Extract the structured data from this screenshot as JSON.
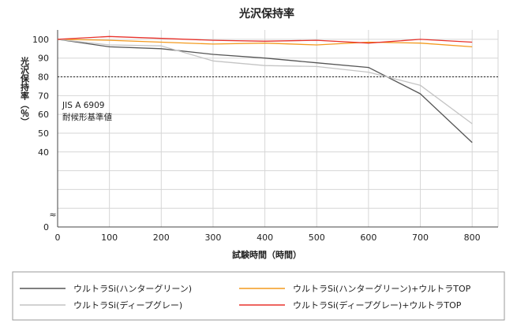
{
  "chart_data": {
    "type": "line",
    "title": "光沢保持率",
    "xlabel": "試験時間（時間）",
    "ylabel": "光沢保持率（％）",
    "x": [
      0,
      100,
      200,
      300,
      400,
      500,
      600,
      700,
      800
    ],
    "xlim": [
      0,
      850
    ],
    "ylim": [
      0,
      105
    ],
    "yticks": [
      0,
      40,
      50,
      60,
      70,
      80,
      90,
      100
    ],
    "axis_break": "≈",
    "grid": true,
    "reference_line": {
      "y": 80,
      "label_line1": "JIS A 6909",
      "label_line2": "耐候形基準値"
    },
    "legend_position": "bottom",
    "series": [
      {
        "name": "ウルトラSi(ハンターグリーン)",
        "color": "#555555",
        "values": [
          100,
          96,
          95,
          92,
          90,
          87.5,
          85,
          71,
          45
        ]
      },
      {
        "name": "ウルトラSi(ハンターグリーン)+ウルトラTOP",
        "color": "#f39a1e",
        "values": [
          100,
          99.5,
          98.5,
          97.5,
          98,
          97,
          98.5,
          98,
          96
        ]
      },
      {
        "name": "ウルトラSi(ディープグレー)",
        "color": "#c4c4c4",
        "values": [
          100,
          97,
          96.5,
          88.5,
          86,
          85.5,
          82.5,
          75.5,
          55
        ]
      },
      {
        "name": "ウルトラSi(ディープグレー)+ウルトラTOP",
        "color": "#e8322b",
        "values": [
          100,
          101.5,
          100.5,
          99.5,
          99,
          99.5,
          98,
          100,
          98.5
        ]
      }
    ]
  }
}
